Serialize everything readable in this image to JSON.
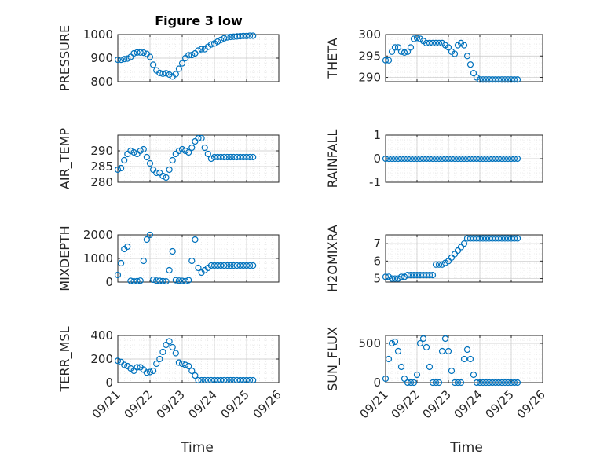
{
  "figure_title": "Figure 3 low",
  "chart_data": [
    {
      "type": "scatter",
      "ylabel": "PRESSURE",
      "ylim": [
        800,
        1000
      ],
      "yticks": [
        800,
        900,
        1000
      ],
      "grid": true,
      "marker": "circle-open",
      "color": "#0072BD",
      "x": [
        0.0,
        0.1,
        0.2,
        0.3,
        0.4,
        0.5,
        0.6,
        0.7,
        0.8,
        0.9,
        1.0,
        1.1,
        1.2,
        1.3,
        1.4,
        1.5,
        1.6,
        1.7,
        1.8,
        1.9,
        2.0,
        2.1,
        2.2,
        2.3,
        2.4,
        2.5,
        2.6,
        2.7,
        2.8,
        2.9,
        3.0,
        3.1,
        3.2,
        3.3,
        3.4,
        3.5,
        3.6,
        3.7,
        3.8,
        3.9,
        4.0,
        4.1,
        4.2
      ],
      "y": [
        893,
        893,
        896,
        898,
        905,
        920,
        924,
        924,
        923,
        918,
        905,
        872,
        848,
        837,
        834,
        836,
        830,
        822,
        832,
        855,
        878,
        900,
        912,
        913,
        920,
        932,
        938,
        938,
        948,
        958,
        962,
        970,
        977,
        984,
        988,
        990,
        991,
        992,
        993,
        994,
        994,
        995,
        995
      ]
    },
    {
      "type": "scatter",
      "ylabel": "THETA",
      "ylim": [
        289,
        300
      ],
      "yticks": [
        290,
        295,
        300
      ],
      "grid": true,
      "marker": "circle-open",
      "color": "#0072BD",
      "x": [
        0.0,
        0.1,
        0.2,
        0.3,
        0.4,
        0.5,
        0.6,
        0.7,
        0.8,
        0.9,
        1.0,
        1.1,
        1.2,
        1.3,
        1.4,
        1.5,
        1.6,
        1.7,
        1.8,
        1.9,
        2.0,
        2.1,
        2.2,
        2.3,
        2.4,
        2.5,
        2.6,
        2.7,
        2.8,
        2.9,
        3.0,
        3.1,
        3.2,
        3.3,
        3.4,
        3.5,
        3.6,
        3.7,
        3.8,
        3.9,
        4.0,
        4.1,
        4.2
      ],
      "y": [
        294,
        294,
        296,
        297,
        297,
        296,
        295.8,
        296,
        297,
        299,
        299.2,
        299,
        298.5,
        298,
        298,
        298,
        298,
        298,
        298,
        297.5,
        297,
        296,
        295.5,
        297.5,
        298,
        297.5,
        295,
        293,
        291,
        290,
        289.5,
        289.5,
        289.5,
        289.5,
        289.5,
        289.5,
        289.5,
        289.5,
        289.5,
        289.5,
        289.5,
        289.5,
        289.5
      ]
    },
    {
      "type": "scatter",
      "ylabel": "AIR_TEMP",
      "ylim": [
        280,
        295
      ],
      "yticks": [
        280,
        285,
        290
      ],
      "grid": true,
      "marker": "circle-open",
      "color": "#0072BD",
      "x": [
        0.0,
        0.1,
        0.2,
        0.3,
        0.4,
        0.5,
        0.6,
        0.7,
        0.8,
        0.9,
        1.0,
        1.1,
        1.2,
        1.3,
        1.4,
        1.5,
        1.6,
        1.7,
        1.8,
        1.9,
        2.0,
        2.1,
        2.2,
        2.3,
        2.4,
        2.5,
        2.6,
        2.7,
        2.8,
        2.9,
        3.0,
        3.1,
        3.2,
        3.3,
        3.4,
        3.5,
        3.6,
        3.7,
        3.8,
        3.9,
        4.0,
        4.1,
        4.2
      ],
      "y": [
        284,
        284.5,
        287,
        289,
        290,
        289.5,
        289,
        290,
        290.5,
        288,
        286,
        284,
        283,
        283,
        282,
        281.5,
        284,
        287,
        289,
        290,
        290.5,
        290,
        289.5,
        291,
        293,
        294,
        294,
        291,
        289,
        287.5,
        288,
        288,
        288,
        288,
        288,
        288,
        288,
        288,
        288,
        288,
        288,
        288,
        288
      ]
    },
    {
      "type": "scatter",
      "ylabel": "RAINFALL",
      "ylim": [
        -1,
        1
      ],
      "yticks": [
        -1,
        0,
        1
      ],
      "grid": true,
      "marker": "circle-open",
      "color": "#0072BD",
      "x": [
        0.0,
        0.1,
        0.2,
        0.3,
        0.4,
        0.5,
        0.6,
        0.7,
        0.8,
        0.9,
        1.0,
        1.1,
        1.2,
        1.3,
        1.4,
        1.5,
        1.6,
        1.7,
        1.8,
        1.9,
        2.0,
        2.1,
        2.2,
        2.3,
        2.4,
        2.5,
        2.6,
        2.7,
        2.8,
        2.9,
        3.0,
        3.1,
        3.2,
        3.3,
        3.4,
        3.5,
        3.6,
        3.7,
        3.8,
        3.9,
        4.0,
        4.1,
        4.2
      ],
      "y": [
        0,
        0,
        0,
        0,
        0,
        0,
        0,
        0,
        0,
        0,
        0,
        0,
        0,
        0,
        0,
        0,
        0,
        0,
        0,
        0,
        0,
        0,
        0,
        0,
        0,
        0,
        0,
        0,
        0,
        0,
        0,
        0,
        0,
        0,
        0,
        0,
        0,
        0,
        0,
        0,
        0,
        0,
        0
      ]
    },
    {
      "type": "scatter",
      "ylabel": "MIXDEPTH",
      "ylim": [
        0,
        2000
      ],
      "yticks": [
        0,
        1000,
        2000
      ],
      "grid": true,
      "marker": "circle-open",
      "color": "#0072BD",
      "x": [
        0.0,
        0.1,
        0.2,
        0.3,
        0.4,
        0.5,
        0.6,
        0.7,
        0.8,
        0.9,
        1.0,
        1.1,
        1.2,
        1.3,
        1.4,
        1.5,
        1.6,
        1.7,
        1.8,
        1.9,
        2.0,
        2.1,
        2.2,
        2.3,
        2.4,
        2.5,
        2.6,
        2.7,
        2.8,
        2.9,
        3.0,
        3.1,
        3.2,
        3.3,
        3.4,
        3.5,
        3.6,
        3.7,
        3.8,
        3.9,
        4.0,
        4.1,
        4.2
      ],
      "y": [
        300,
        800,
        1400,
        1500,
        50,
        30,
        40,
        60,
        900,
        1800,
        2000,
        100,
        60,
        50,
        40,
        30,
        500,
        1300,
        80,
        60,
        50,
        40,
        80,
        900,
        1800,
        600,
        400,
        500,
        600,
        700,
        700,
        700,
        700,
        700,
        700,
        700,
        700,
        700,
        700,
        700,
        700,
        700,
        700
      ]
    },
    {
      "type": "scatter",
      "ylabel": "H2OMIXRA",
      "ylim": [
        4.8,
        7.5
      ],
      "yticks": [
        5,
        6,
        7
      ],
      "grid": true,
      "marker": "circle-open",
      "color": "#0072BD",
      "x": [
        0.0,
        0.1,
        0.2,
        0.3,
        0.4,
        0.5,
        0.6,
        0.7,
        0.8,
        0.9,
        1.0,
        1.1,
        1.2,
        1.3,
        1.4,
        1.5,
        1.6,
        1.7,
        1.8,
        1.9,
        2.0,
        2.1,
        2.2,
        2.3,
        2.4,
        2.5,
        2.6,
        2.7,
        2.8,
        2.9,
        3.0,
        3.1,
        3.2,
        3.3,
        3.4,
        3.5,
        3.6,
        3.7,
        3.8,
        3.9,
        4.0,
        4.1,
        4.2
      ],
      "y": [
        5.1,
        5.1,
        5,
        5,
        5,
        5.1,
        5.1,
        5.2,
        5.2,
        5.2,
        5.2,
        5.2,
        5.2,
        5.2,
        5.2,
        5.2,
        5.8,
        5.8,
        5.8,
        5.9,
        6,
        6.2,
        6.4,
        6.6,
        6.8,
        7,
        7.3,
        7.3,
        7.3,
        7.3,
        7.3,
        7.3,
        7.3,
        7.3,
        7.3,
        7.3,
        7.3,
        7.3,
        7.3,
        7.3,
        7.3,
        7.3,
        7.3
      ]
    },
    {
      "type": "scatter",
      "ylabel": "TERR_MSL",
      "ylim": [
        0,
        400
      ],
      "yticks": [
        0,
        200,
        400
      ],
      "grid": true,
      "marker": "circle-open",
      "color": "#0072BD",
      "x": [
        0.0,
        0.1,
        0.2,
        0.3,
        0.4,
        0.5,
        0.6,
        0.7,
        0.8,
        0.9,
        1.0,
        1.1,
        1.2,
        1.3,
        1.4,
        1.5,
        1.6,
        1.7,
        1.8,
        1.9,
        2.0,
        2.1,
        2.2,
        2.3,
        2.4,
        2.5,
        2.6,
        2.7,
        2.8,
        2.9,
        3.0,
        3.1,
        3.2,
        3.3,
        3.4,
        3.5,
        3.6,
        3.7,
        3.8,
        3.9,
        4.0,
        4.1,
        4.2
      ],
      "y": [
        185,
        175,
        150,
        140,
        120,
        100,
        130,
        130,
        110,
        85,
        90,
        100,
        160,
        200,
        260,
        320,
        350,
        300,
        250,
        170,
        160,
        150,
        140,
        100,
        60,
        20,
        20,
        20,
        20,
        20,
        20,
        20,
        20,
        20,
        20,
        20,
        20,
        20,
        20,
        20,
        20,
        20,
        20
      ]
    },
    {
      "type": "scatter",
      "ylabel": "SUN_FLUX",
      "ylim": [
        0,
        600
      ],
      "yticks": [
        0,
        500
      ],
      "grid": true,
      "marker": "circle-open",
      "color": "#0072BD",
      "x": [
        0.0,
        0.1,
        0.2,
        0.3,
        0.4,
        0.5,
        0.6,
        0.7,
        0.8,
        0.9,
        1.0,
        1.1,
        1.2,
        1.3,
        1.4,
        1.5,
        1.6,
        1.7,
        1.8,
        1.9,
        2.0,
        2.1,
        2.2,
        2.3,
        2.4,
        2.5,
        2.6,
        2.7,
        2.8,
        2.9,
        3.0,
        3.1,
        3.2,
        3.3,
        3.4,
        3.5,
        3.6,
        3.7,
        3.8,
        3.9,
        4.0,
        4.1,
        4.2
      ],
      "y": [
        50,
        300,
        500,
        520,
        400,
        200,
        50,
        0,
        0,
        0,
        100,
        500,
        560,
        450,
        200,
        0,
        0,
        0,
        400,
        560,
        400,
        150,
        0,
        0,
        0,
        300,
        420,
        300,
        100,
        0,
        0,
        0,
        0,
        0,
        0,
        0,
        0,
        0,
        0,
        0,
        0,
        0,
        0
      ]
    }
  ],
  "xaxis": {
    "label": "Time",
    "tick_labels": [
      "09/21",
      "09/22",
      "09/23",
      "09/24",
      "09/25",
      "09/26"
    ],
    "range": [
      0,
      5
    ]
  }
}
